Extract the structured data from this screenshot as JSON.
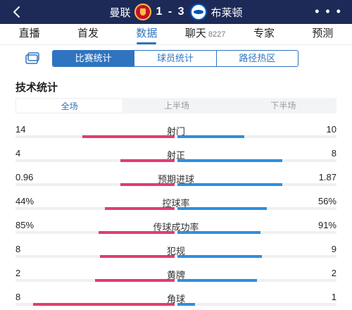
{
  "header": {
    "home_team": "曼联",
    "away_team": "布莱顿",
    "score": "1 - 3",
    "more_label": "• • •",
    "home_color": "#c8102e",
    "away_color": "#0057b8"
  },
  "tabs": [
    {
      "label": "直播"
    },
    {
      "label": "首发"
    },
    {
      "label": "数据",
      "active": true
    },
    {
      "label": "聊天",
      "count": "8227"
    },
    {
      "label": "专家"
    },
    {
      "label": "预测"
    }
  ],
  "subtabs": [
    {
      "label": "比赛统计",
      "active": true
    },
    {
      "label": "球员统计"
    },
    {
      "label": "路径热区"
    }
  ],
  "section_title": "技术统计",
  "periods": [
    {
      "label": "全场",
      "active": true
    },
    {
      "label": "上半场"
    },
    {
      "label": "下半场"
    }
  ],
  "stats": [
    {
      "name": "射门",
      "home": "14",
      "away": "10",
      "home_ratio": 0.58,
      "away_ratio": 0.42
    },
    {
      "name": "射正",
      "home": "4",
      "away": "8",
      "home_ratio": 0.34,
      "away_ratio": 0.66
    },
    {
      "name": "预期进球",
      "home": "0.96",
      "away": "1.87",
      "home_ratio": 0.34,
      "away_ratio": 0.66
    },
    {
      "name": "控球率",
      "home": "44%",
      "away": "56%",
      "home_ratio": 0.44,
      "away_ratio": 0.56
    },
    {
      "name": "传球成功率",
      "home": "85%",
      "away": "91%",
      "home_ratio": 0.48,
      "away_ratio": 0.52
    },
    {
      "name": "犯规",
      "home": "8",
      "away": "9",
      "home_ratio": 0.47,
      "away_ratio": 0.53
    },
    {
      "name": "黄牌",
      "home": "2",
      "away": "2",
      "home_ratio": 0.5,
      "away_ratio": 0.5
    },
    {
      "name": "角球",
      "home": "8",
      "away": "1",
      "home_ratio": 0.89,
      "away_ratio": 0.11
    }
  ],
  "colors": {
    "accent": "#2f74c0",
    "header_bg": "#1d2a58",
    "home_bar": "#e23d6e",
    "away_bar": "#2d8fe0"
  },
  "icons": {
    "back": "chevron-left-icon",
    "layout": "layout-icon"
  }
}
